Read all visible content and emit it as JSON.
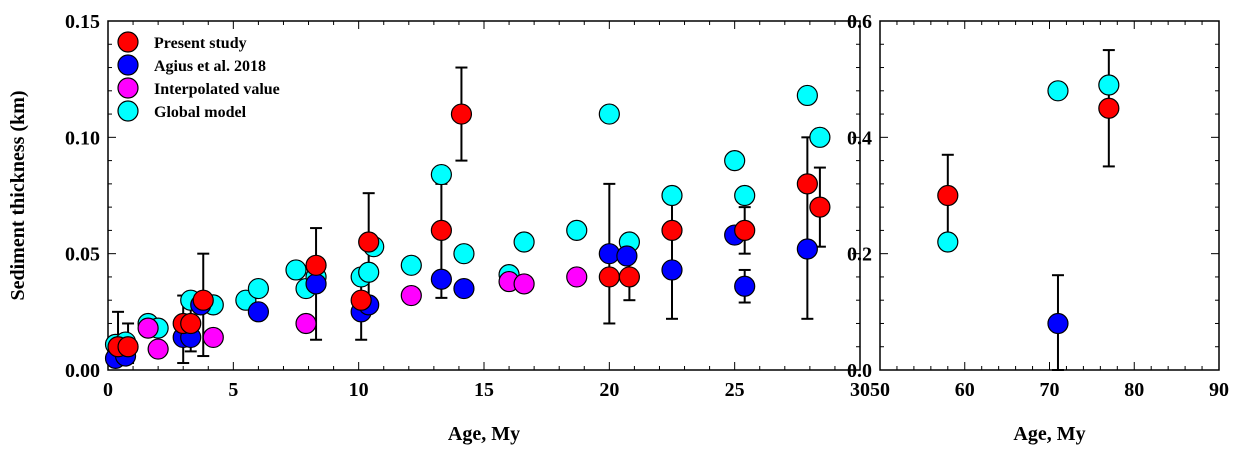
{
  "chart_data": [
    {
      "type": "scatter",
      "ylabel": "Sediment thickness (km)",
      "xlabel": "Age, My",
      "xlim": [
        0,
        30
      ],
      "ylim": [
        0,
        0.15
      ],
      "x_ticks": [
        0,
        5,
        10,
        15,
        20,
        25,
        30
      ],
      "x_tick_labels": [
        "0",
        "5",
        "10",
        "15",
        "20",
        "25",
        "30"
      ],
      "y_ticks": [
        0,
        0.05,
        0.1,
        0.15
      ],
      "y_tick_labels": [
        "0.00",
        "0.05",
        "0.10",
        "0.15"
      ],
      "legend_position": "top-left",
      "series": [
        {
          "name": "Present study",
          "color": "#ff0000",
          "points": [
            {
              "x": 0.4,
              "y": 0.01,
              "err_low": 0.004,
              "err_high": 0.025
            },
            {
              "x": 0.8,
              "y": 0.01,
              "err_low": 0.003,
              "err_high": 0.02
            },
            {
              "x": 3.0,
              "y": 0.02,
              "err_low": 0.003,
              "err_high": 0.032
            },
            {
              "x": 3.3,
              "y": 0.02,
              "err_low": 0.008,
              "err_high": 0.028
            },
            {
              "x": 3.8,
              "y": 0.03,
              "err_low": 0.006,
              "err_high": 0.05
            },
            {
              "x": 8.3,
              "y": 0.045,
              "err_low": 0.013,
              "err_high": 0.061
            },
            {
              "x": 10.1,
              "y": 0.03,
              "err_low": 0.013,
              "err_high": 0.04
            },
            {
              "x": 10.4,
              "y": 0.055,
              "err_low": 0.028,
              "err_high": 0.076
            },
            {
              "x": 13.3,
              "y": 0.06,
              "err_low": 0.031,
              "err_high": 0.08
            },
            {
              "x": 14.1,
              "y": 0.11,
              "err_low": 0.09,
              "err_high": 0.13
            },
            {
              "x": 20.0,
              "y": 0.04,
              "err_low": 0.02,
              "err_high": 0.08
            },
            {
              "x": 20.8,
              "y": 0.04,
              "err_low": 0.03,
              "err_high": 0.05
            },
            {
              "x": 22.5,
              "y": 0.06,
              "err_low": 0.022,
              "err_high": 0.074
            },
            {
              "x": 25.4,
              "y": 0.06,
              "err_low": 0.05,
              "err_high": 0.07
            },
            {
              "x": 27.9,
              "y": 0.08,
              "err_low": 0.022,
              "err_high": 0.1
            },
            {
              "x": 28.4,
              "y": 0.07,
              "err_low": 0.053,
              "err_high": 0.087
            }
          ]
        },
        {
          "name": "Agius et al. 2018",
          "color": "#0000ff",
          "points": [
            {
              "x": 0.3,
              "y": 0.005
            },
            {
              "x": 0.7,
              "y": 0.006
            },
            {
              "x": 3.0,
              "y": 0.014
            },
            {
              "x": 3.3,
              "y": 0.014
            },
            {
              "x": 3.7,
              "y": 0.028
            },
            {
              "x": 6.0,
              "y": 0.025
            },
            {
              "x": 8.3,
              "y": 0.037
            },
            {
              "x": 10.1,
              "y": 0.025
            },
            {
              "x": 10.4,
              "y": 0.028
            },
            {
              "x": 13.3,
              "y": 0.039
            },
            {
              "x": 14.2,
              "y": 0.035
            },
            {
              "x": 20.0,
              "y": 0.05
            },
            {
              "x": 20.7,
              "y": 0.049
            },
            {
              "x": 22.5,
              "y": 0.043
            },
            {
              "x": 25.0,
              "y": 0.058
            },
            {
              "x": 25.4,
              "y": 0.036,
              "err_low": 0.029,
              "err_high": 0.043
            },
            {
              "x": 27.9,
              "y": 0.052
            }
          ]
        },
        {
          "name": "Interpolated value",
          "color": "#ff00ff",
          "points": [
            {
              "x": 1.6,
              "y": 0.018
            },
            {
              "x": 2.0,
              "y": 0.009
            },
            {
              "x": 4.2,
              "y": 0.014
            },
            {
              "x": 7.9,
              "y": 0.02
            },
            {
              "x": 12.1,
              "y": 0.032
            },
            {
              "x": 16.0,
              "y": 0.038
            },
            {
              "x": 16.6,
              "y": 0.037
            },
            {
              "x": 18.7,
              "y": 0.04
            }
          ]
        },
        {
          "name": "Global model",
          "color": "#00ffff",
          "points": [
            {
              "x": 0.3,
              "y": 0.011
            },
            {
              "x": 0.7,
              "y": 0.012
            },
            {
              "x": 1.6,
              "y": 0.02
            },
            {
              "x": 2.0,
              "y": 0.018
            },
            {
              "x": 3.3,
              "y": 0.03
            },
            {
              "x": 4.2,
              "y": 0.028
            },
            {
              "x": 5.5,
              "y": 0.03
            },
            {
              "x": 6.0,
              "y": 0.035
            },
            {
              "x": 7.5,
              "y": 0.043
            },
            {
              "x": 7.9,
              "y": 0.035
            },
            {
              "x": 8.3,
              "y": 0.04
            },
            {
              "x": 10.1,
              "y": 0.04
            },
            {
              "x": 10.4,
              "y": 0.042
            },
            {
              "x": 10.6,
              "y": 0.053
            },
            {
              "x": 12.1,
              "y": 0.045
            },
            {
              "x": 13.3,
              "y": 0.084
            },
            {
              "x": 14.2,
              "y": 0.05
            },
            {
              "x": 16.0,
              "y": 0.041
            },
            {
              "x": 16.6,
              "y": 0.055
            },
            {
              "x": 18.7,
              "y": 0.06
            },
            {
              "x": 20.0,
              "y": 0.11
            },
            {
              "x": 20.8,
              "y": 0.055
            },
            {
              "x": 22.5,
              "y": 0.075
            },
            {
              "x": 25.0,
              "y": 0.09
            },
            {
              "x": 25.4,
              "y": 0.075
            },
            {
              "x": 27.9,
              "y": 0.118
            },
            {
              "x": 28.4,
              "y": 0.1
            }
          ]
        }
      ]
    },
    {
      "type": "scatter",
      "ylabel": "",
      "xlabel": "Age, My",
      "xlim": [
        50,
        90
      ],
      "ylim": [
        0,
        0.6
      ],
      "x_ticks": [
        50,
        60,
        70,
        80,
        90
      ],
      "x_tick_labels": [
        "50",
        "60",
        "70",
        "80",
        "90"
      ],
      "y_ticks": [
        0,
        0.2,
        0.4,
        0.6
      ],
      "y_tick_labels": [
        "0.0",
        "0.2",
        "0.4",
        "0.6"
      ],
      "series": [
        {
          "name": "Present study",
          "color": "#ff0000",
          "points": [
            {
              "x": 58,
              "y": 0.3,
              "err_low": 0.23,
              "err_high": 0.37
            },
            {
              "x": 77,
              "y": 0.45,
              "err_low": 0.35,
              "err_high": 0.55
            }
          ]
        },
        {
          "name": "Agius et al. 2018",
          "color": "#0000ff",
          "points": [
            {
              "x": 71,
              "y": 0.08,
              "err_low": 0.0,
              "err_high": 0.163
            }
          ]
        },
        {
          "name": "Global model",
          "color": "#00ffff",
          "points": [
            {
              "x": 58,
              "y": 0.22
            },
            {
              "x": 71,
              "y": 0.48
            },
            {
              "x": 77,
              "y": 0.49
            }
          ]
        }
      ]
    }
  ]
}
